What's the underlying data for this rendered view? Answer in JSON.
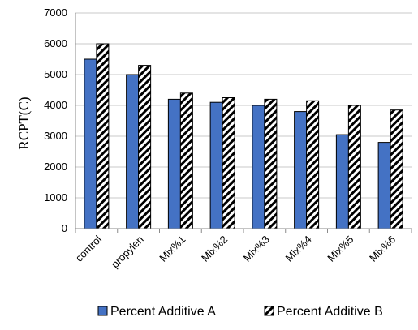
{
  "chart_data": {
    "type": "bar",
    "title": "",
    "xlabel": "",
    "ylabel": "RCPT(C)",
    "categories": [
      "control",
      "propylen",
      "Mix%1",
      "Mix%2",
      "Mix%3",
      "Mix%4",
      "Mix%5",
      "Mix%6"
    ],
    "series": [
      {
        "name": "Percent Additive A",
        "color": "#4472C4",
        "pattern": "solid",
        "values": [
          5500,
          5000,
          4200,
          4100,
          4000,
          3800,
          3050,
          2800
        ]
      },
      {
        "name": "Percent Additive B",
        "color": "#000000",
        "pattern": "diagonal-hatch",
        "values": [
          6000,
          5300,
          4400,
          4250,
          4200,
          4150,
          4000,
          3850
        ]
      }
    ],
    "ylim": [
      0,
      7000
    ],
    "yticks": [
      "0",
      "1000",
      "2000",
      "3000",
      "4000",
      "5000",
      "6000",
      "7000"
    ],
    "grid": true,
    "legend_position": "bottom"
  }
}
